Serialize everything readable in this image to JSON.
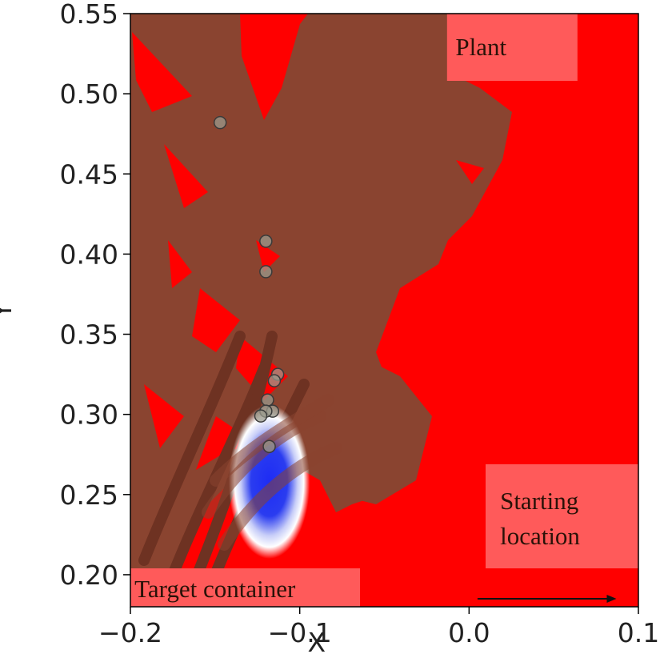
{
  "colors": {
    "background_field": "#ff0000",
    "plant": "#8a4430",
    "plant_dark": "#6e3222",
    "target_core": "#1428f0",
    "marker_face": "#9a9a8c",
    "marker_edge": "#3a3a3a",
    "label_box": "#ff5a5a",
    "arrow": "#111111"
  },
  "chart_data": {
    "type": "scatter",
    "xlabel": "X",
    "ylabel": "Y",
    "xlim": [
      -0.2,
      0.1
    ],
    "ylim": [
      0.18,
      0.55
    ],
    "xticks": [
      {
        "value": -0.2,
        "label": "−0.2"
      },
      {
        "value": -0.1,
        "label": "−0.1"
      },
      {
        "value": 0.0,
        "label": "0.0"
      },
      {
        "value": 0.1,
        "label": "0.1"
      }
    ],
    "yticks": [
      {
        "value": 0.2,
        "label": "0.20"
      },
      {
        "value": 0.25,
        "label": "0.25"
      },
      {
        "value": 0.3,
        "label": "0.30"
      },
      {
        "value": 0.35,
        "label": "0.35"
      },
      {
        "value": 0.4,
        "label": "0.40"
      },
      {
        "value": 0.45,
        "label": "0.45"
      },
      {
        "value": 0.5,
        "label": "0.50"
      },
      {
        "value": 0.55,
        "label": "0.55"
      }
    ],
    "points": [
      {
        "x": -0.147,
        "y": 0.482
      },
      {
        "x": -0.12,
        "y": 0.408
      },
      {
        "x": -0.12,
        "y": 0.389
      },
      {
        "x": -0.113,
        "y": 0.325
      },
      {
        "x": -0.115,
        "y": 0.321
      },
      {
        "x": -0.119,
        "y": 0.309
      },
      {
        "x": -0.116,
        "y": 0.302
      },
      {
        "x": -0.12,
        "y": 0.302
      },
      {
        "x": -0.123,
        "y": 0.299
      },
      {
        "x": -0.118,
        "y": 0.28
      }
    ],
    "target_region": {
      "cx": -0.118,
      "cy": 0.258,
      "rx": 0.024,
      "ry": 0.048
    },
    "annotations": [
      {
        "text": "Plant",
        "x": -0.008,
        "y": 0.542
      },
      {
        "text": "Starting location",
        "lines": [
          "Starting",
          "location"
        ],
        "x": 0.015,
        "y": 0.238
      },
      {
        "text": "Target container",
        "x": -0.199,
        "y": 0.193
      }
    ],
    "arrow": {
      "x0": 0.005,
      "y0": 0.195,
      "x1": 0.087,
      "y1": 0.195
    }
  }
}
